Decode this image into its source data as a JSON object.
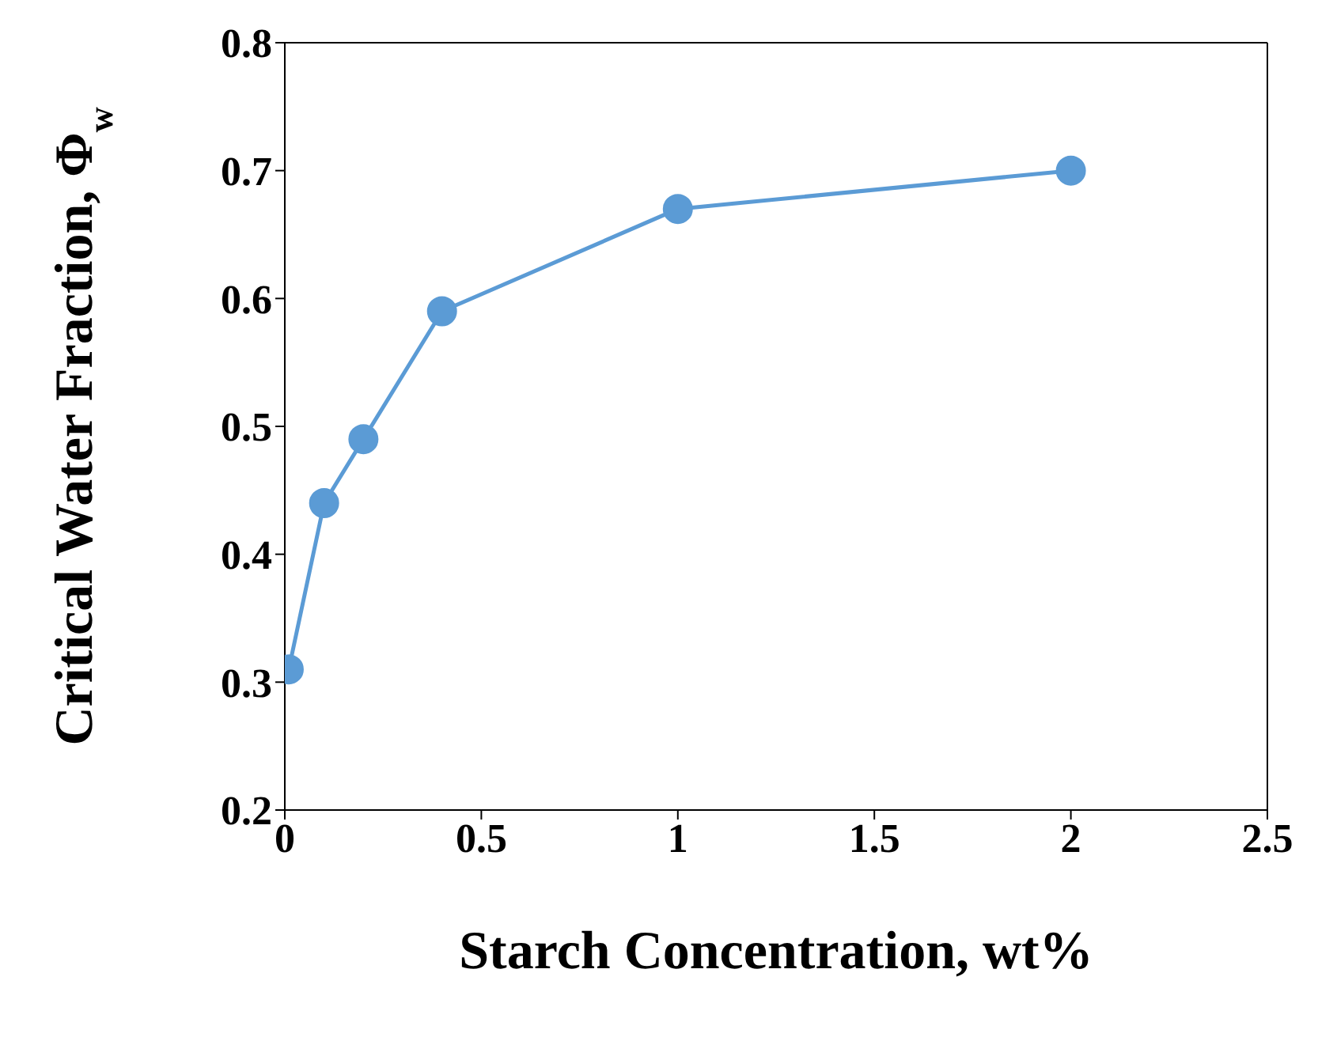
{
  "chart_data": {
    "type": "line",
    "xlabel": "Starch Concentration, wt%",
    "ylabel": "Critical Water Fraction, Φ$_{w}$",
    "x": [
      0.01,
      0.1,
      0.2,
      0.4,
      1,
      2
    ],
    "series": [
      {
        "color": "#5b9bd5",
        "values": [
          0.31,
          0.44,
          0.49,
          0.59,
          0.67,
          0.7
        ]
      }
    ],
    "xlim": [
      0,
      2.5
    ],
    "xticks": [
      0,
      0.5,
      1,
      1.5,
      2,
      2.5
    ],
    "ylim": [
      0.2,
      0.8
    ],
    "yticks": [
      0.2,
      0.3,
      0.4,
      0.5,
      0.6,
      0.7,
      0.8
    ],
    "marker": "circle",
    "line_style": "solid",
    "grid": false,
    "legend": false
  }
}
